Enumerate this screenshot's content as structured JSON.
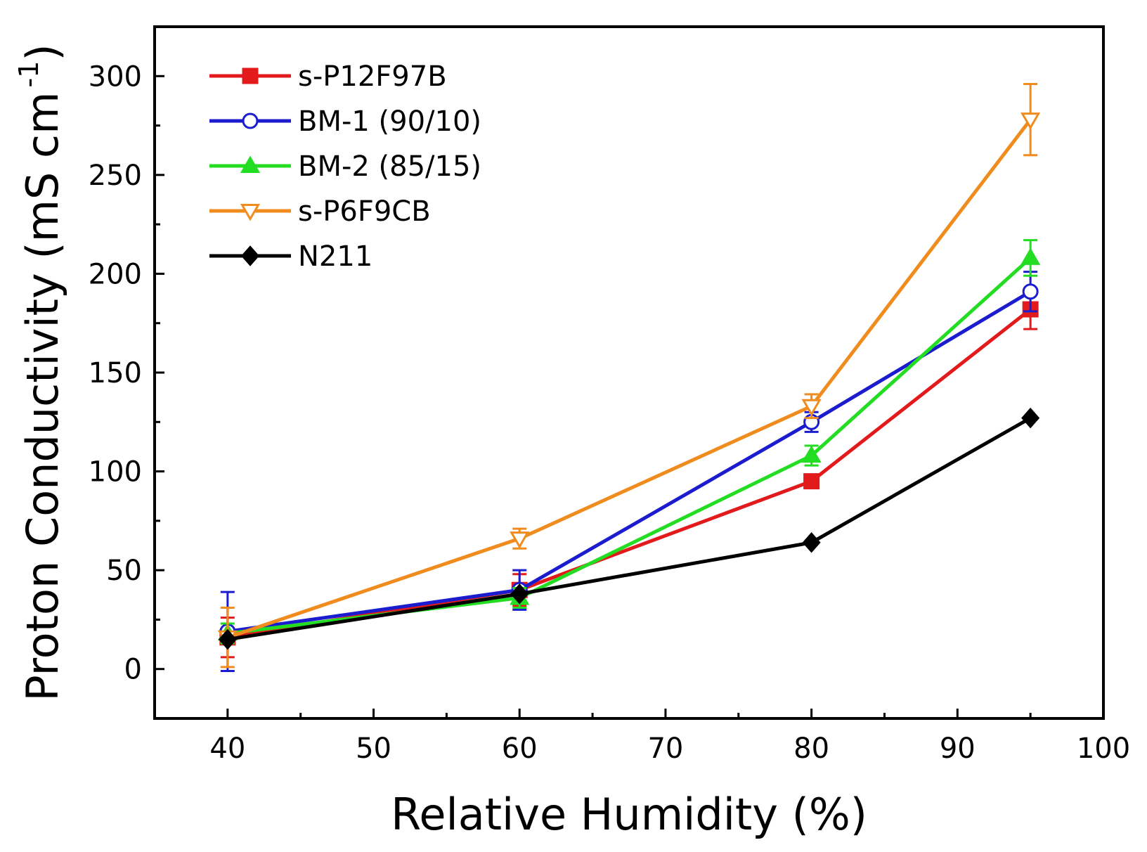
{
  "chart_data": {
    "type": "line",
    "title": "",
    "xlabel": "Relative Humidity (%)",
    "ylabel": "Proton Conductivity (mS cm",
    "ylabel_superscript": "-1",
    "ylabel_close": ")",
    "xlim": [
      35,
      100
    ],
    "ylim": [
      -25,
      325
    ],
    "xticks": [
      40,
      50,
      60,
      70,
      80,
      90,
      100
    ],
    "yticks": [
      0,
      50,
      100,
      150,
      200,
      250,
      300
    ],
    "xtick_labels": [
      "40",
      "50",
      "60",
      "70",
      "80",
      "90",
      "100"
    ],
    "ytick_labels": [
      "0",
      "50",
      "100",
      "150",
      "200",
      "250",
      "300"
    ],
    "grid": false,
    "legend_position": "top-left",
    "x": [
      40,
      60,
      80,
      95
    ],
    "series": [
      {
        "name": "s-P12F97B",
        "color": "#e31a1c",
        "marker": "square",
        "filled": true,
        "values": [
          16,
          40,
          95,
          182
        ],
        "errors": [
          [
            10,
            10
          ],
          [
            8,
            8
          ],
          [
            3,
            3
          ],
          [
            10,
            10
          ]
        ]
      },
      {
        "name": "BM-1 (90/10)",
        "color": "#1c1ccf",
        "marker": "circle",
        "filled": false,
        "values": [
          19,
          40,
          125,
          191
        ],
        "errors": [
          [
            20,
            20
          ],
          [
            10,
            10
          ],
          [
            5,
            5
          ],
          [
            10,
            10
          ]
        ]
      },
      {
        "name": "BM-2 (85/15)",
        "color": "#22dd22",
        "marker": "triangle-up",
        "filled": true,
        "values": [
          18,
          36,
          108,
          208
        ],
        "errors": [
          [
            5,
            5
          ],
          [
            5,
            5
          ],
          [
            5,
            5
          ],
          [
            9,
            9
          ]
        ]
      },
      {
        "name": "s-P6F9CB",
        "color": "#f08c1e",
        "marker": "triangle-down",
        "filled": false,
        "values": [
          16,
          66,
          133,
          278
        ],
        "errors": [
          [
            15,
            15
          ],
          [
            5,
            5
          ],
          [
            6,
            6
          ],
          [
            18,
            18
          ]
        ]
      },
      {
        "name": "N211",
        "color": "#000000",
        "marker": "diamond",
        "filled": true,
        "values": [
          15,
          38,
          64,
          127
        ],
        "errors": [
          [
            0,
            0
          ],
          [
            0,
            0
          ],
          [
            0,
            0
          ],
          [
            0,
            0
          ]
        ]
      }
    ]
  }
}
